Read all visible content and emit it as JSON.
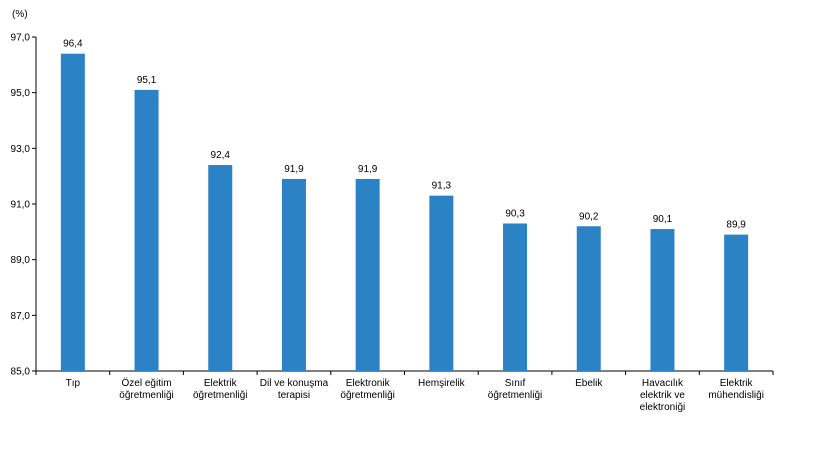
{
  "chart_data": {
    "type": "bar",
    "title": "",
    "xlabel": "",
    "ylabel": "(%)",
    "ylim": [
      85.0,
      97.0
    ],
    "yticks": [
      "85,0",
      "87,0",
      "89,0",
      "91,0",
      "93,0",
      "95,0",
      "97,0"
    ],
    "grid": false,
    "legend": "none",
    "bar_color": "#2b83c6",
    "categories": [
      [
        "Tıp"
      ],
      [
        "Özel eğitim",
        "öğretmenliği"
      ],
      [
        "Elektrik",
        "öğretmenliği"
      ],
      [
        "Dil ve konuşma",
        "terapisi"
      ],
      [
        "Elektronik",
        "öğretmenliği"
      ],
      [
        "Hemşirelik"
      ],
      [
        "Sınıf",
        "öğretmenliği"
      ],
      [
        "Ebelik"
      ],
      [
        "Havacılık",
        "elektrik ve",
        "elektroniği"
      ],
      [
        "Elektrik",
        "mühendisliği"
      ]
    ],
    "values": [
      96.4,
      95.1,
      92.4,
      91.9,
      91.9,
      91.3,
      90.3,
      90.2,
      90.1,
      89.9
    ],
    "value_labels": [
      "96,4",
      "95,1",
      "92,4",
      "91,9",
      "91,9",
      "91,3",
      "90,3",
      "90,2",
      "90,1",
      "89,9"
    ]
  }
}
